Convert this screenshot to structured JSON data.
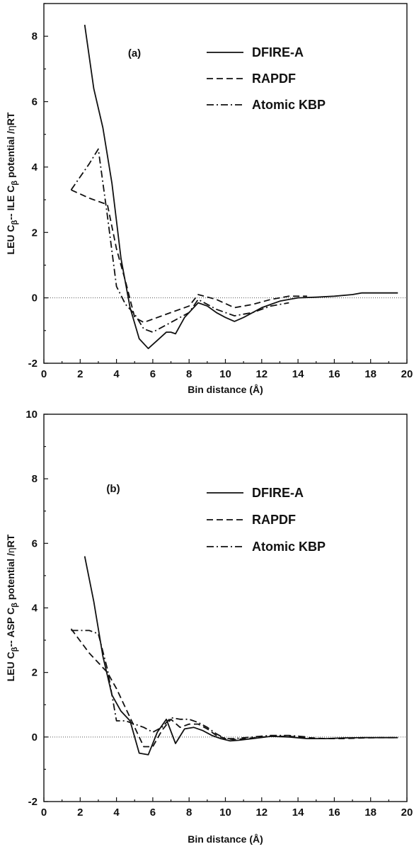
{
  "chart_data": [
    {
      "type": "line",
      "panel_label": "(a)",
      "xlabel": "Bin distance (Å)",
      "ylabel_parts": [
        "LEU C",
        "β",
        "-- ILE C",
        "β",
        " potential /",
        "η",
        "RT"
      ],
      "xlim": [
        0,
        20
      ],
      "ylim": [
        -2,
        9
      ],
      "xticks": [
        "0",
        "2",
        "4",
        "6",
        "8",
        "10",
        "12",
        "14",
        "16",
        "18",
        "20"
      ],
      "yticks": [
        "-2",
        "0",
        "2",
        "4",
        "6",
        "8"
      ],
      "zero_line": true,
      "legend_position": "top-right",
      "series": [
        {
          "name": "DFIRE-A",
          "style": "solid",
          "x": [
            2.25,
            2.75,
            3.25,
            3.75,
            4.25,
            4.75,
            5.25,
            5.75,
            6.25,
            6.75,
            7.0,
            7.25,
            7.75,
            8.25,
            8.5,
            9.0,
            9.5,
            10.0,
            10.5,
            11.0,
            11.5,
            12.0,
            12.5,
            13.0,
            13.5,
            14.0,
            15.0,
            16.0,
            17.0,
            17.5,
            18.0,
            19.0,
            19.5
          ],
          "y": [
            8.35,
            6.4,
            5.2,
            3.5,
            1.2,
            -0.3,
            -1.25,
            -1.55,
            -1.3,
            -1.05,
            -1.05,
            -1.1,
            -0.6,
            -0.3,
            -0.15,
            -0.25,
            -0.45,
            -0.6,
            -0.72,
            -0.6,
            -0.45,
            -0.3,
            -0.2,
            -0.1,
            -0.05,
            0.0,
            0.02,
            0.05,
            0.1,
            0.15,
            0.15,
            0.15,
            0.15
          ]
        },
        {
          "name": "RAPDF",
          "style": "dashed",
          "x": [
            1.5,
            2.5,
            3.5,
            4.0,
            4.5,
            5.0,
            5.5,
            6.0,
            7.0,
            8.0,
            8.5,
            9.5,
            10.5,
            11.5,
            12.5,
            13.5,
            14.5
          ],
          "y": [
            3.3,
            3.05,
            2.85,
            1.5,
            0.5,
            -0.6,
            -0.75,
            -0.65,
            -0.45,
            -0.25,
            0.1,
            -0.05,
            -0.3,
            -0.2,
            -0.05,
            0.05,
            0.05
          ]
        },
        {
          "name": "Atomic KBP",
          "style": "dash-dot",
          "x": [
            1.5,
            2.5,
            3.0,
            3.5,
            4.0,
            4.5,
            5.0,
            5.5,
            6.0,
            7.0,
            8.0,
            8.5,
            9.5,
            10.5,
            11.5,
            12.5,
            13.5
          ],
          "y": [
            3.3,
            4.1,
            4.55,
            2.5,
            0.35,
            -0.2,
            -0.5,
            -0.95,
            -1.05,
            -0.75,
            -0.45,
            -0.05,
            -0.35,
            -0.55,
            -0.45,
            -0.25,
            -0.15
          ]
        }
      ]
    },
    {
      "type": "line",
      "panel_label": "(b)",
      "xlabel": "Bin distance (Å)",
      "ylabel_parts": [
        "LEU C",
        "β",
        "-- ASP C",
        "β",
        " potential /",
        "η",
        "RT"
      ],
      "xlim": [
        0,
        20
      ],
      "ylim": [
        -2,
        10
      ],
      "xticks": [
        "0",
        "2",
        "4",
        "6",
        "8",
        "10",
        "12",
        "14",
        "16",
        "18",
        "20"
      ],
      "yticks": [
        "-2",
        "0",
        "2",
        "4",
        "6",
        "8",
        "10"
      ],
      "zero_line": true,
      "legend_position": "top-right",
      "series": [
        {
          "name": "DFIRE-A",
          "style": "solid",
          "x": [
            2.25,
            2.75,
            3.25,
            3.75,
            4.25,
            4.75,
            5.25,
            5.75,
            6.25,
            6.75,
            7.25,
            7.75,
            8.25,
            8.75,
            9.25,
            9.75,
            10.25,
            10.75,
            11.5,
            12.5,
            13.5,
            14.5,
            15.5,
            16.5,
            17.5,
            18.5,
            19.5
          ],
          "y": [
            5.6,
            4.2,
            2.5,
            1.3,
            0.8,
            0.5,
            -0.5,
            -0.55,
            0.15,
            0.55,
            -0.2,
            0.25,
            0.3,
            0.2,
            0.05,
            -0.05,
            -0.12,
            -0.1,
            -0.05,
            0.02,
            0.0,
            -0.05,
            -0.05,
            -0.03,
            -0.02,
            -0.02,
            -0.02
          ]
        },
        {
          "name": "RAPDF",
          "style": "dashed",
          "x": [
            1.5,
            2.5,
            3.5,
            4.0,
            4.5,
            5.0,
            5.5,
            6.0,
            6.5,
            7.0,
            7.5,
            8.0,
            8.5,
            9.0,
            9.5,
            10.0,
            10.5,
            11.5,
            12.5,
            13.5,
            14.5,
            15.5,
            16.5,
            17.5,
            18.5,
            19.5
          ],
          "y": [
            3.35,
            2.6,
            2.0,
            1.5,
            0.9,
            0.3,
            -0.3,
            -0.3,
            0.2,
            0.55,
            0.3,
            0.4,
            0.4,
            0.25,
            0.05,
            -0.05,
            -0.08,
            -0.03,
            0.02,
            0.02,
            -0.02,
            -0.05,
            -0.05,
            -0.03,
            -0.02,
            -0.02
          ]
        },
        {
          "name": "Atomic KBP",
          "style": "dash-dot",
          "x": [
            1.5,
            2.5,
            3.0,
            3.5,
            4.0,
            4.5,
            5.0,
            5.5,
            6.0,
            6.5,
            7.0,
            7.5,
            8.0,
            8.5,
            9.0,
            9.5,
            10.0,
            10.5,
            11.5,
            12.5,
            13.5,
            14.5
          ],
          "y": [
            3.3,
            3.3,
            3.2,
            2.1,
            0.5,
            0.5,
            0.4,
            0.3,
            0.15,
            0.3,
            0.6,
            0.55,
            0.55,
            0.45,
            0.3,
            0.1,
            -0.05,
            -0.05,
            0.0,
            0.05,
            0.05,
            0.0
          ]
        }
      ]
    }
  ]
}
